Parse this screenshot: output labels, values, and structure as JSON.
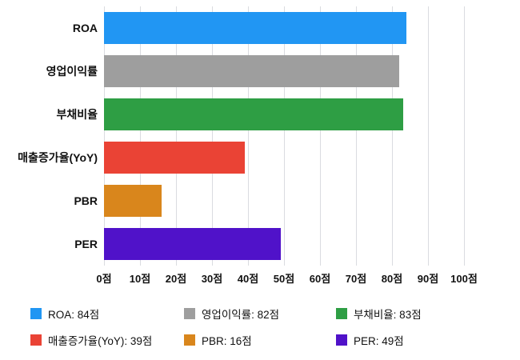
{
  "chart_data": {
    "type": "bar",
    "orientation": "horizontal",
    "title": "",
    "categories": [
      "ROA",
      "영업이익률",
      "부채비율",
      "매출증가율(YoY)",
      "PBR",
      "PER"
    ],
    "values": [
      84,
      82,
      83,
      39,
      16,
      49
    ],
    "colors": [
      "#2196F3",
      "#9E9E9E",
      "#2E9E44",
      "#EA4335",
      "#D9861C",
      "#5012C9"
    ],
    "unit": "점",
    "xlim": [
      0,
      100
    ],
    "xtick_labels": [
      "0점",
      "10점",
      "20점",
      "30점",
      "40점",
      "50점",
      "60점",
      "70점",
      "80점",
      "90점",
      "100점"
    ],
    "grid": true,
    "gridline_color": "#dadce0",
    "legend_position": "bottom",
    "legend_labels": [
      "ROA: 84점",
      "영업이익률: 82점",
      "부채비율: 83점",
      "매출증가율(YoY): 39점",
      "PBR: 16점",
      "PER: 49점"
    ]
  }
}
